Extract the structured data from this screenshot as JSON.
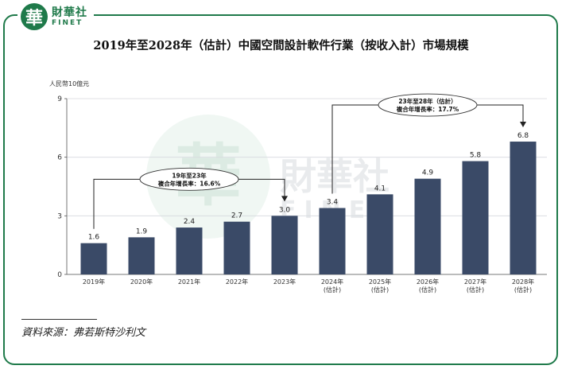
{
  "brand": {
    "seal_char": "華",
    "name_cn": "財華社",
    "name_en": "FINET",
    "color": "#1f7a4a"
  },
  "title": "2019年至2028年（估計）中國空間設計軟件行業（按收入計）市場規模",
  "source": "資料來源：弗若斯特沙利文",
  "chart_data": {
    "type": "bar",
    "ylabel": "人民幣10億元",
    "ylim": [
      0,
      9
    ],
    "yticks": [
      0,
      3,
      6,
      9
    ],
    "categories": [
      "2019年",
      "2020年",
      "2021年",
      "2022年",
      "2023年",
      "2024年",
      "2025年",
      "2026年",
      "2027年",
      "2028年"
    ],
    "category_sublabels": [
      "",
      "",
      "",
      "",
      "",
      "(估計)",
      "(估計)",
      "(估計)",
      "(估計)",
      "(估計)"
    ],
    "values": [
      1.6,
      1.9,
      2.4,
      2.7,
      3.0,
      3.4,
      4.1,
      4.9,
      5.8,
      6.8
    ],
    "value_labels": [
      "1.6",
      "1.9",
      "2.4",
      "2.7",
      "3.0",
      "3.4",
      "4.1",
      "4.9",
      "5.8",
      "6.8"
    ],
    "bar_color": "#3a4a67",
    "grid": true,
    "annotations": [
      {
        "line1": "19年至23年",
        "line2": "複合年增長率：16.6%",
        "from_index": 0,
        "to_index": 4
      },
      {
        "line1": "23年至28年（估計）",
        "line2": "複合年增長率：17.7%",
        "from_index": 5,
        "to_index": 9
      }
    ],
    "watermark": {
      "seal_char": "華",
      "text_cn": "財華社",
      "text_en": "FINET"
    }
  }
}
